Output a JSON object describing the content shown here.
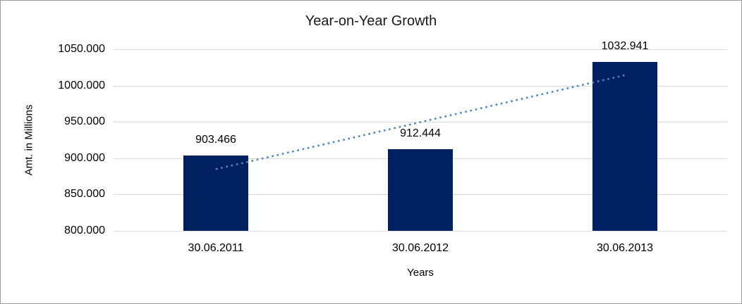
{
  "window": {
    "background": "#ffffff",
    "border_color": "#9c9c9c"
  },
  "chart_data": {
    "type": "bar",
    "title": "Year-on-Year Growth",
    "xlabel": "Years",
    "ylabel": "Amt. in Millions",
    "categories": [
      "30.06.2011",
      "30.06.2012",
      "30.06.2013"
    ],
    "values": [
      903.466,
      912.444,
      1032.941
    ],
    "value_labels": [
      "903.466",
      "912.444",
      "1032.941"
    ],
    "ylim": [
      800,
      1050
    ],
    "yticks": [
      {
        "value": 800,
        "label": "800.000"
      },
      {
        "value": 850,
        "label": "850.000"
      },
      {
        "value": 900,
        "label": "900.000"
      },
      {
        "value": 950,
        "label": "950.000"
      },
      {
        "value": 1000,
        "label": "1000.000"
      },
      {
        "value": 1050,
        "label": "1050.000"
      }
    ],
    "grid": "horizontal",
    "legend": "none",
    "bar_color": "#002060",
    "gridline_color": "#d9d9d9",
    "text_color": "#000000",
    "trendline": {
      "type": "linear",
      "style": "dotted",
      "color": "#4a86c8"
    }
  }
}
